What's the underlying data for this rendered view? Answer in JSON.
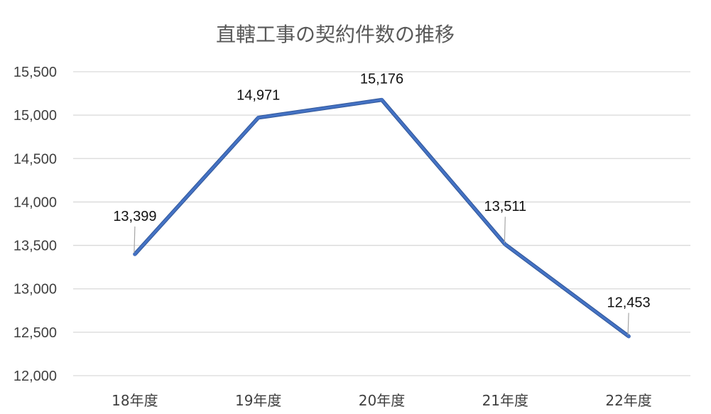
{
  "chart_data": {
    "type": "line",
    "title": "直轄工事の契約件数の推移",
    "xlabel": "",
    "ylabel": "",
    "categories": [
      "18年度",
      "19年度",
      "20年度",
      "21年度",
      "22年度"
    ],
    "series": [
      {
        "values": [
          13399,
          14971,
          15176,
          13511,
          12453
        ],
        "color": "#4472c4"
      }
    ],
    "data_labels": [
      "13,399",
      "14,971",
      "15,176",
      "13,511",
      "12,453"
    ],
    "ylim": [
      12000,
      15500
    ],
    "yticks": [
      12000,
      12500,
      13000,
      13500,
      14000,
      14500,
      15000,
      15500
    ],
    "ytick_labels": [
      "12,000",
      "12,500",
      "13,000",
      "13,500",
      "14,000",
      "14,500",
      "15,000",
      "15,500"
    ],
    "grid": true,
    "legend": "none"
  }
}
